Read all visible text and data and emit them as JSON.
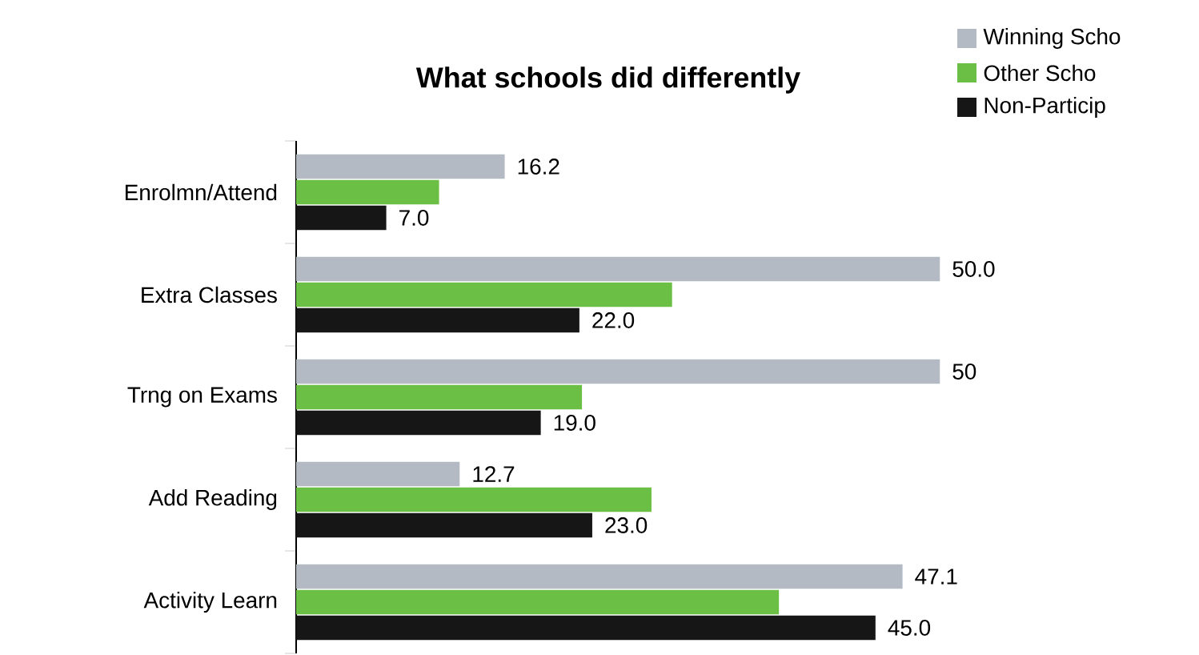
{
  "chart_data": {
    "type": "bar",
    "orientation": "horizontal",
    "title": "What schools did differently",
    "categories": [
      "Enrolmn/Attend",
      "Extra Classes",
      "Trng on Exams",
      "Add Reading",
      "Activity Learn"
    ],
    "series": [
      {
        "name": "Winning Scho",
        "color": "#b4bac4",
        "values": [
          16.2,
          50.0,
          50,
          12.7,
          47.1
        ],
        "value_labels": [
          "16.2",
          "50.0",
          "50",
          "12.7",
          "47.1"
        ]
      },
      {
        "name": "Other Scho",
        "color": "#6cbf45",
        "values": [
          11.1,
          29.2,
          22.2,
          27.6,
          37.5
        ]
      },
      {
        "name": "Non-Particip",
        "color": "#161616",
        "values": [
          7.0,
          22.0,
          19.0,
          23.0,
          45.0
        ],
        "value_labels": [
          "7.0",
          "22.0",
          "19.0",
          "23.0",
          "45.0"
        ]
      }
    ],
    "legend": "top right"
  }
}
